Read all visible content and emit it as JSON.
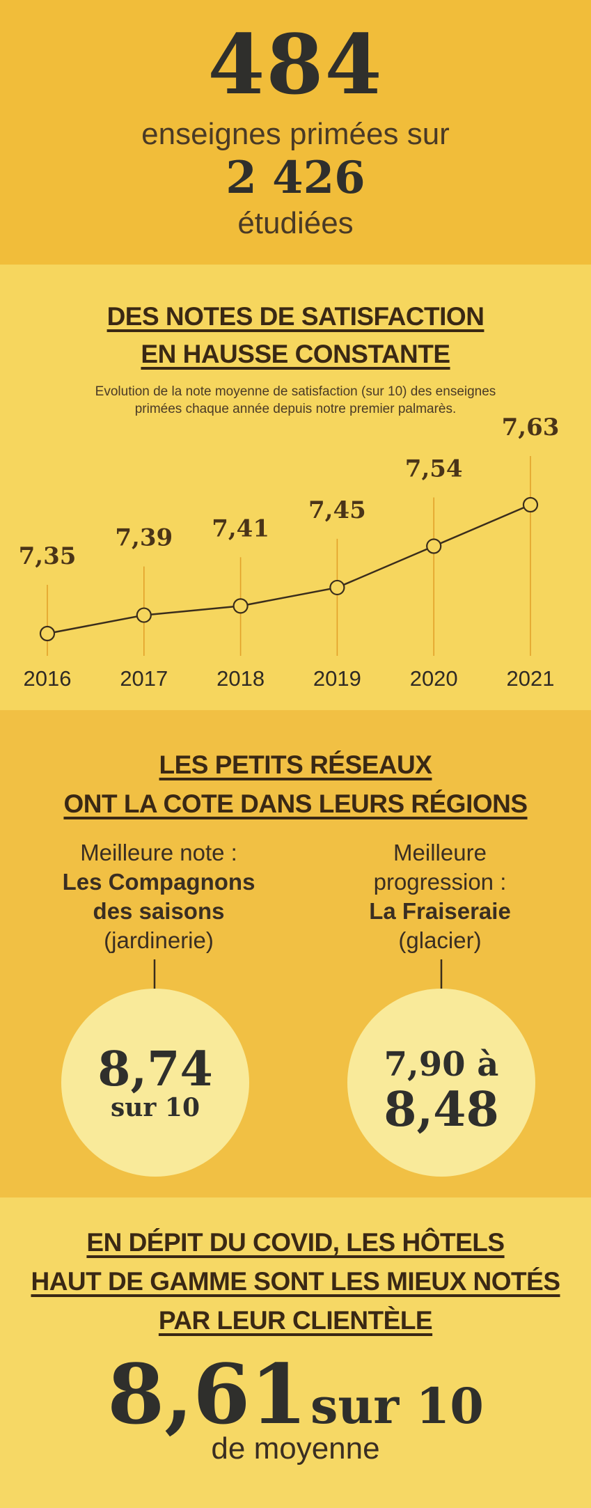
{
  "header": {
    "count_primees": "484",
    "line_primees": "enseignes primées sur",
    "count_etudiees": "2 426",
    "line_etudiees": "étudiées"
  },
  "satisfaction": {
    "title_line1": "DES NOTES DE SATISFACTION",
    "title_line2": "EN HAUSSE CONSTANTE",
    "subtitle_line1": "Evolution de la note moyenne de satisfaction (sur 10) des enseignes",
    "subtitle_line2": "primées chaque année depuis notre premier palmarès."
  },
  "chart_data": {
    "type": "line",
    "categories": [
      "2016",
      "2017",
      "2018",
      "2019",
      "2020",
      "2021"
    ],
    "values": [
      7.35,
      7.39,
      7.41,
      7.45,
      7.54,
      7.63
    ],
    "value_labels": [
      "7,35",
      "7,39",
      "7,41",
      "7,45",
      "7,54",
      "7,63"
    ],
    "title": "",
    "xlabel": "",
    "ylabel": "",
    "grid": false,
    "line_color": "#3a2d1c",
    "marker_fill": "#f6d65e"
  },
  "petits_reseaux": {
    "title_line1": "LES PETITS RÉSEAUX",
    "title_line2": "ONT LA COTE DANS LEURS RÉGIONS",
    "left": {
      "label": "Meilleure note :",
      "name_line1": "Les Compagnons",
      "name_line2": "des saisons",
      "category": "(jardinerie)",
      "score": "8,74",
      "score_unit": "sur 10"
    },
    "right": {
      "label_line1": "Meilleure",
      "label_line2": "progression :",
      "name": "La Fraiseraie",
      "category": "(glacier)",
      "score_from": "7,90 à",
      "score_to": "8,48"
    }
  },
  "hotels": {
    "title_line1": "EN DÉPIT DU COVID, LES HÔTELS",
    "title_line2": "HAUT DE GAMME SONT LES MIEUX NOTÉS",
    "title_line3": "PAR LEUR CLIENTÈLE",
    "score": "8,61",
    "score_unit": "sur 10",
    "caption": "de moyenne"
  },
  "colors": {
    "section1": "#f1bd3a",
    "section2": "#f6d65e",
    "section3": "#f1c044",
    "section4": "#f6d865",
    "circle": "#f9ea9a",
    "ink": "#2f2f2c"
  }
}
